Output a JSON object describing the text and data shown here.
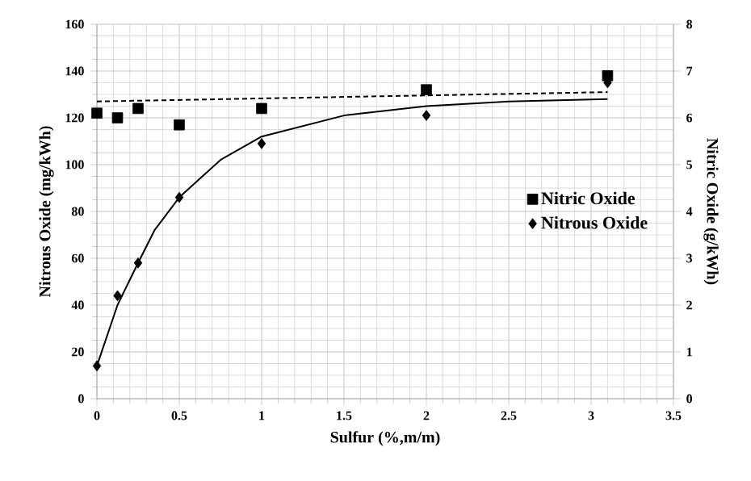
{
  "chart_data": {
    "type": "scatter",
    "xlabel": "Sulfur (%,m/m)",
    "ylabel": "Nitrous Oxide (mg/kWh)",
    "y2label": "Nitric Oxide (g/kWh)",
    "series": [
      {
        "name": "Nitrous Oxide",
        "color": "#000000",
        "marker": "diamond",
        "x": [
          0,
          0.125,
          0.25,
          0.5,
          1,
          2,
          3.1
        ],
        "values": [
          14,
          44,
          58,
          86,
          109,
          121,
          135
        ]
      },
      {
        "name": "Nitric Oxide",
        "color": "#000000",
        "marker": "square",
        "axis": "y2",
        "x": [
          0,
          0.125,
          0.25,
          0.5,
          1,
          2,
          3.1
        ],
        "values": [
          6.1,
          6.0,
          6.2,
          5.85,
          6.2,
          6.6,
          6.9
        ]
      },
      {
        "type": "line",
        "color": "#000000",
        "marker": "none",
        "line_style": "solid",
        "x": [
          0,
          0.125,
          0.25,
          0.35,
          0.5,
          0.75,
          1,
          1.5,
          2,
          2.5,
          3.1
        ],
        "values": [
          14,
          40,
          58,
          72,
          86,
          102,
          112,
          121,
          125,
          127,
          128
        ]
      },
      {
        "type": "line",
        "color": "#000000",
        "marker": "none",
        "line_style": "dashed",
        "axis": "y2",
        "x": [
          0,
          3.1
        ],
        "values": [
          6.35,
          6.55
        ]
      }
    ],
    "xlim": [
      0,
      3.5
    ],
    "xticks": [
      0,
      0.5,
      1,
      1.5,
      2,
      2.5,
      3,
      3.5
    ],
    "ylim": [
      0,
      160
    ],
    "yticks": [
      0,
      20,
      40,
      60,
      80,
      100,
      120,
      140,
      160
    ],
    "y2lim": [
      0,
      8
    ],
    "y2ticks": [
      0,
      1,
      2,
      3,
      4,
      5,
      6,
      7,
      8
    ],
    "grid": true,
    "legend": "right"
  }
}
